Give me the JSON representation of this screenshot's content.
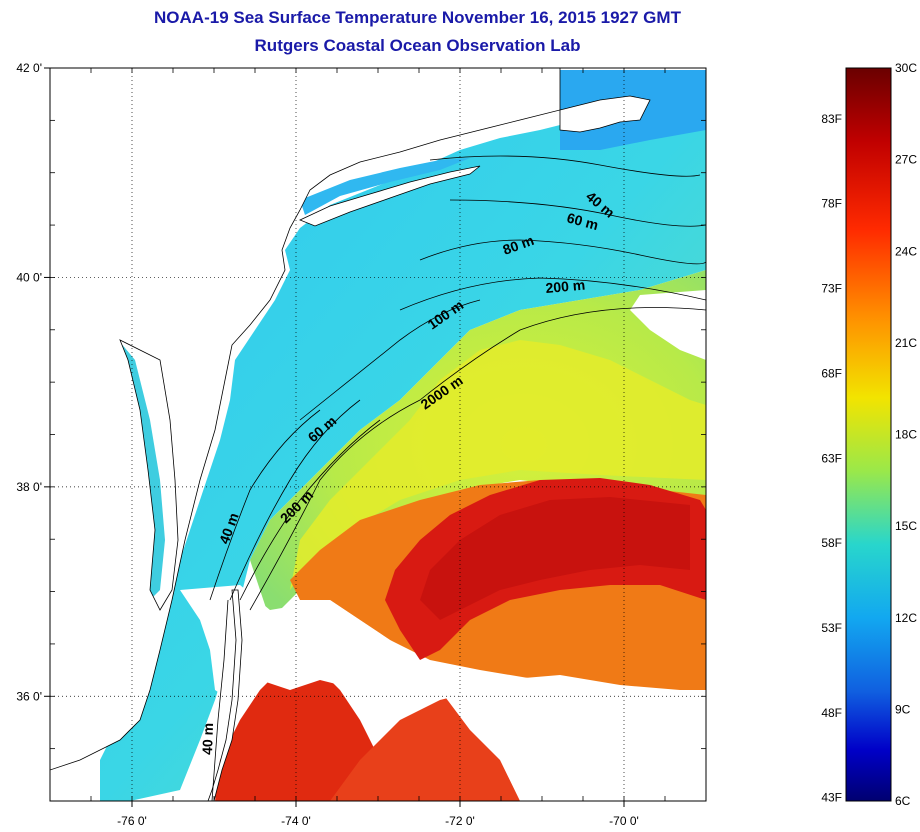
{
  "title_line1": "NOAA-19 Sea Surface Temperature November 16, 2015 1927 GMT",
  "title_line2": "Rutgers Coastal Ocean Observation Lab",
  "map": {
    "lon_range": [
      -77.0,
      -69.0
    ],
    "lat_range": [
      35.0,
      42.0
    ],
    "lon_ticks": [
      {
        "value": -76,
        "label": "-76 0'"
      },
      {
        "value": -74,
        "label": "-74 0'"
      },
      {
        "value": -72,
        "label": "-72 0'"
      },
      {
        "value": -70,
        "label": "-70 0'"
      }
    ],
    "lat_ticks": [
      {
        "value": 42,
        "label": "42 0'"
      },
      {
        "value": 40,
        "label": "40 0'"
      },
      {
        "value": 38,
        "label": "38 0'"
      },
      {
        "value": 36,
        "label": "36 0'"
      }
    ],
    "isobath_labels": [
      "40 m",
      "60 m",
      "80 m",
      "200 m",
      "100 m",
      "2000 m",
      "60 m",
      "200 m",
      "40 m",
      "40 m"
    ],
    "grid": "dotted",
    "colors": {
      "land": "#ffffff",
      "cloud": "#ffffff",
      "cold_water": "#1f9df0",
      "shelf_water": "#3fd8e8",
      "slope_water": "#c8ef3c",
      "warm_core": "#d81818",
      "gulf_stream": "#f06a18"
    }
  },
  "colorbar": {
    "fahrenheit": [
      "83F",
      "78F",
      "73F",
      "68F",
      "63F",
      "58F",
      "53F",
      "48F",
      "43F"
    ],
    "celsius": [
      "30C",
      "27C",
      "24C",
      "21C",
      "18C",
      "15C",
      "12C",
      "9C",
      "6C"
    ],
    "min_c": 6,
    "max_c": 30,
    "gradient": [
      "#7a0000",
      "#c80000",
      "#ff3000",
      "#ff9a00",
      "#f0e600",
      "#9ae84a",
      "#2ad8c8",
      "#10a8f0",
      "#1060e0",
      "#0000c0",
      "#000080"
    ]
  }
}
